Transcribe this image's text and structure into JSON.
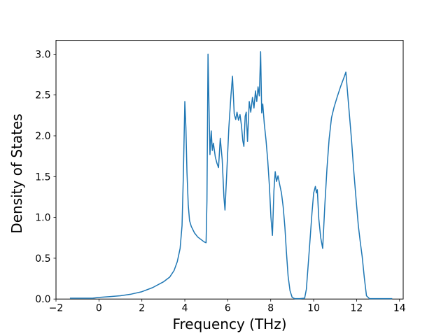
{
  "figure": {
    "background": "#ffffff",
    "text_color": "#000000",
    "spine_color": "#000000"
  },
  "chart_data": {
    "type": "line",
    "title": "",
    "xlabel": "Frequency (THz)",
    "ylabel": "Density of States",
    "xlim": [
      -2.0,
      14.17
    ],
    "ylim": [
      0,
      3.17
    ],
    "xticks": [
      -2,
      0,
      2,
      4,
      6,
      8,
      10,
      12,
      14
    ],
    "xtick_labels": [
      "−2",
      "0",
      "2",
      "4",
      "6",
      "8",
      "10",
      "12",
      "14"
    ],
    "yticks": [
      0.0,
      0.5,
      1.0,
      1.5,
      2.0,
      2.5,
      3.0
    ],
    "ytick_labels": [
      "0.0",
      "0.5",
      "1.0",
      "1.5",
      "2.0",
      "2.5",
      "3.0"
    ],
    "grid": false,
    "legend": null,
    "line_color": "#1f77b4",
    "line_width": 1.5,
    "series": [
      {
        "name": "density_of_states",
        "x": [
          -1.35,
          -0.8,
          -0.3,
          0,
          0.5,
          1,
          1.5,
          2,
          2.5,
          3,
          3.3,
          3.5,
          3.65,
          3.78,
          3.87,
          3.93,
          4,
          4.05,
          4.1,
          4.16,
          4.22,
          4.3,
          4.45,
          4.6,
          4.75,
          4.9,
          4.99,
          5.03,
          5.08,
          5.13,
          5.17,
          5.23,
          5.28,
          5.33,
          5.42,
          5.5,
          5.57,
          5.65,
          5.74,
          5.82,
          5.87,
          5.95,
          6.05,
          6.15,
          6.22,
          6.3,
          6.37,
          6.43,
          6.5,
          6.57,
          6.64,
          6.7,
          6.75,
          6.81,
          6.86,
          6.92,
          7,
          7.07,
          7.15,
          7.22,
          7.29,
          7.35,
          7.41,
          7.47,
          7.53,
          7.58,
          7.63,
          7.7,
          7.78,
          7.86,
          7.94,
          8.01,
          8.08,
          8.15,
          8.21,
          8.27,
          8.34,
          8.42,
          8.5,
          8.58,
          8.66,
          8.73,
          8.81,
          8.9,
          9,
          9.12,
          9.35,
          9.58,
          9.66,
          9.74,
          9.83,
          9.92,
          10,
          10.08,
          10.13,
          10.17,
          10.24,
          10.33,
          10.42,
          10.52,
          10.62,
          10.72,
          10.83,
          10.95,
          11.1,
          11.25,
          11.42,
          11.5,
          11.62,
          11.76,
          11.87,
          11.98,
          12.08,
          12.17,
          12.26,
          12.36,
          12.46,
          12.6,
          13,
          13.66
        ],
        "y": [
          0.01,
          0.01,
          0.01,
          0.02,
          0.03,
          0.04,
          0.06,
          0.09,
          0.14,
          0.21,
          0.27,
          0.35,
          0.46,
          0.62,
          0.9,
          1.5,
          2.42,
          2.1,
          1.55,
          1.15,
          0.96,
          0.89,
          0.81,
          0.76,
          0.73,
          0.7,
          0.69,
          1.2,
          3,
          2.3,
          1.77,
          2.06,
          1.82,
          1.91,
          1.74,
          1.66,
          1.61,
          1.97,
          1.71,
          1.25,
          1.09,
          1.53,
          2.1,
          2.5,
          2.73,
          2.27,
          2.2,
          2.29,
          2.19,
          2.26,
          2.12,
          1.94,
          1.87,
          2.24,
          2.29,
          1.93,
          2.42,
          2.29,
          2.47,
          2.34,
          2.55,
          2.42,
          2.6,
          2.49,
          3.03,
          2.28,
          2.39,
          2.15,
          1.95,
          1.7,
          1.38,
          1,
          0.78,
          1.33,
          1.56,
          1.44,
          1.51,
          1.4,
          1.3,
          1.13,
          0.88,
          0.58,
          0.28,
          0.1,
          0.02,
          0.005,
          0.005,
          0.01,
          0.12,
          0.4,
          0.72,
          1.05,
          1.3,
          1.38,
          1.3,
          1.34,
          0.98,
          0.75,
          0.62,
          1.15,
          1.6,
          1.96,
          2.22,
          2.35,
          2.48,
          2.6,
          2.72,
          2.78,
          2.4,
          1.96,
          1.56,
          1.21,
          0.9,
          0.7,
          0.52,
          0.26,
          0.04,
          0.005,
          0.005,
          0.005
        ]
      }
    ]
  }
}
